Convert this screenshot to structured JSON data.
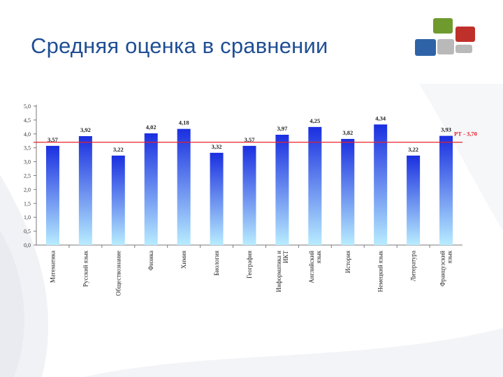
{
  "title": "Средняя оценка в сравнении",
  "colors": {
    "title": "#1f4e94",
    "bar_top": "#1a2fe0",
    "bar_bottom": "#b8ecff",
    "reference_line": "#e8202a",
    "reference_label": "#e8202a",
    "logo_blue": "#2f63a8",
    "logo_green": "#6f9a2e",
    "logo_red": "#c0302a",
    "logo_gray": "#b9b9b9"
  },
  "logo": {
    "icon": "colored-squares-logo-icon"
  },
  "chart_data": {
    "type": "bar",
    "categories": [
      "Математика",
      "Русский язык",
      "Обществознание",
      "Физика",
      "Химия",
      "Биология",
      "География",
      "Информатика и ИКТ",
      "Английский язык",
      "История",
      "Немецкий язык",
      "Литература",
      "Французский язык"
    ],
    "values": [
      3.57,
      3.92,
      3.22,
      4.02,
      4.18,
      3.32,
      3.57,
      3.97,
      4.25,
      3.82,
      4.34,
      3.22,
      3.93
    ],
    "value_labels": [
      "3,57",
      "3,92",
      "3,22",
      "4,02",
      "4,18",
      "3,32",
      "3,57",
      "3,97",
      "4,25",
      "3,82",
      "4,34",
      "3,22",
      "3,93"
    ],
    "ylim": [
      0,
      5
    ],
    "yticks": [
      0,
      0.5,
      1,
      1.5,
      2,
      2.5,
      3,
      3.5,
      4,
      4.5,
      5
    ],
    "ytick_labels": [
      "0,0",
      "0,5",
      "1,0",
      "1,5",
      "2,0",
      "2,5",
      "3,0",
      "3,5",
      "4,0",
      "4,5",
      "5,0"
    ],
    "reference": {
      "value": 3.7,
      "label": "РТ - 3,70"
    },
    "grid": false,
    "legend": "none"
  }
}
